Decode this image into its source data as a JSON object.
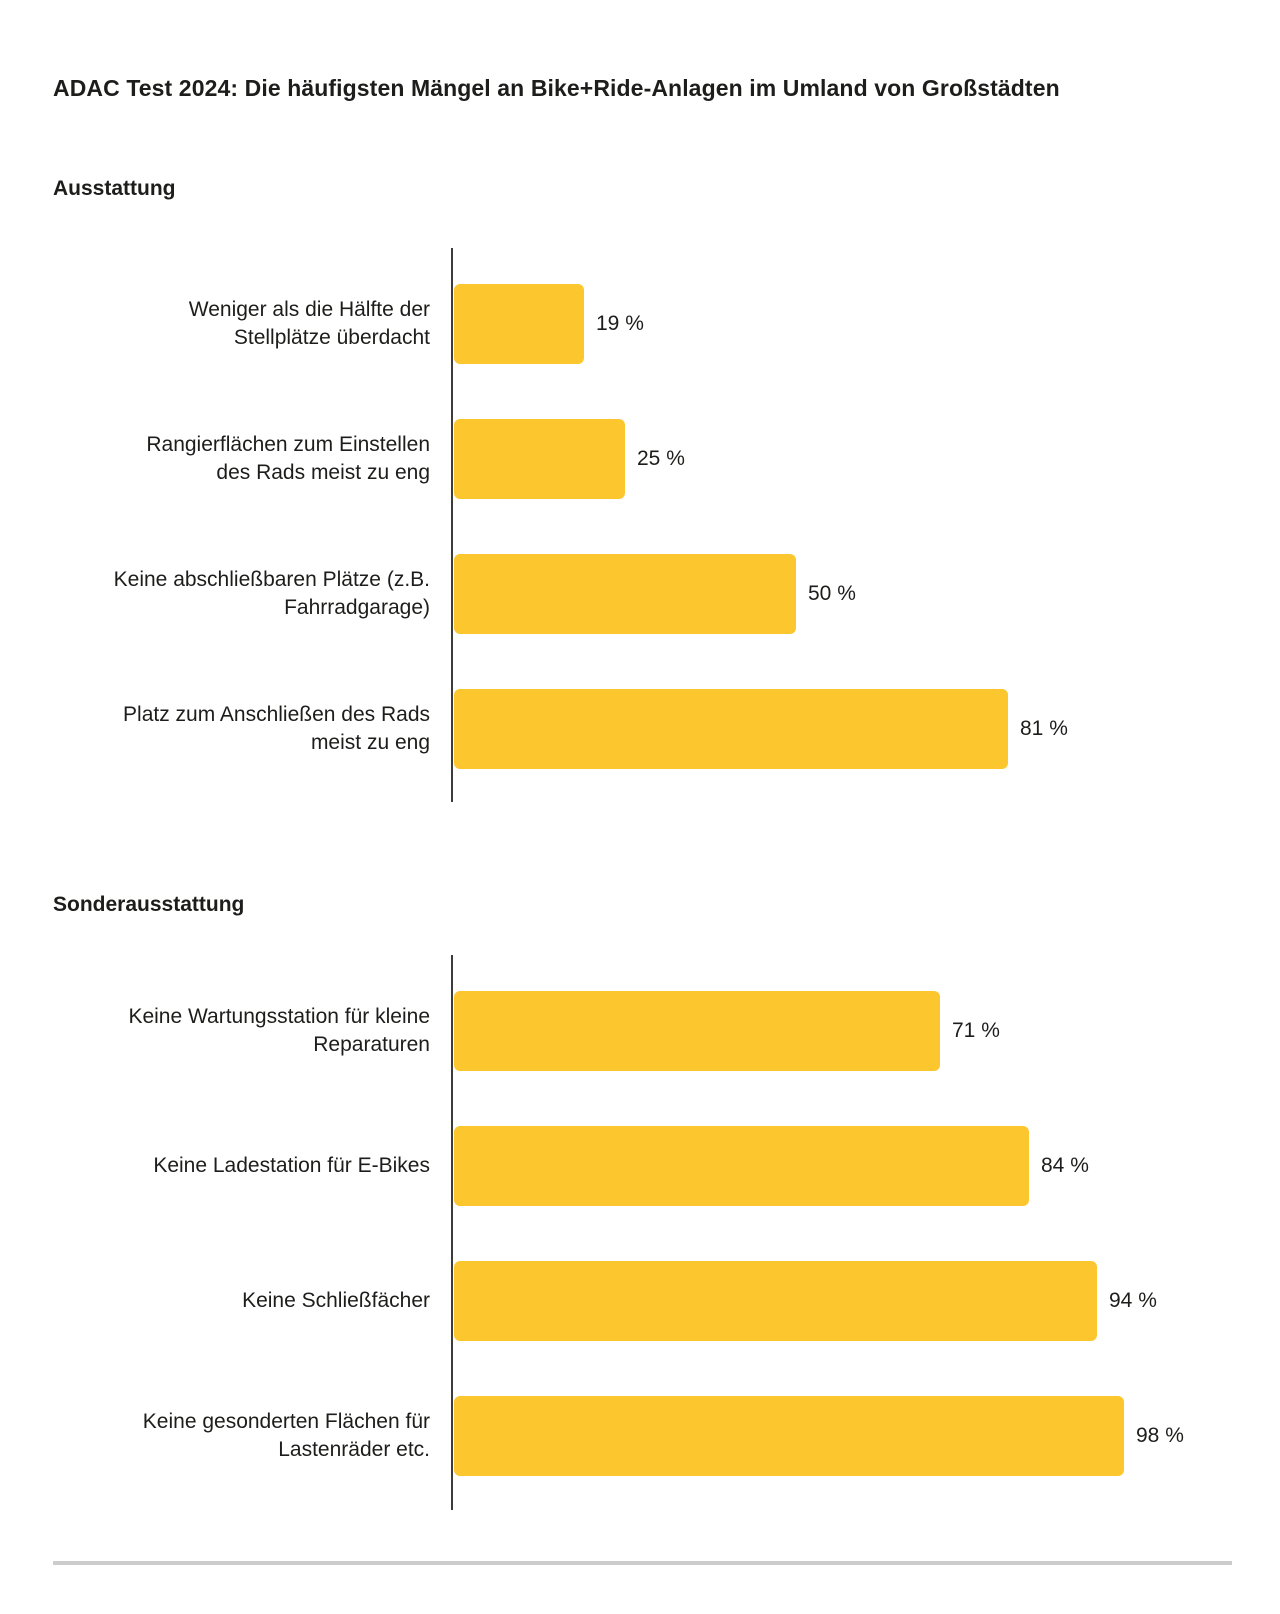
{
  "page": {
    "title": "ADAC Test 2024: Die häufigsten Mängel an Bike+Ride-Anlagen im Umland von Großstädten"
  },
  "colors": {
    "bar_fill": "#FCC72E",
    "axis": "#3C3C3B",
    "divider": "#CCCCCC",
    "text": "#1D1D1B"
  },
  "chart_data": [
    {
      "type": "bar",
      "orientation": "horizontal",
      "title": "Ausstattung",
      "unit": "%",
      "xlim": [
        0,
        100
      ],
      "grid": false,
      "legend": "none",
      "categories": [
        "Weniger als die Hälfte der\nStellplätze überdacht",
        "Rangierflächen zum Einstellen\ndes Rads meist zu eng",
        "Keine abschließbaren Plätze (z.B.\nFahrradgarage)",
        "Platz zum Anschließen des Rads\nmeist zu eng"
      ],
      "values": [
        19,
        25,
        50,
        81
      ],
      "value_labels": [
        "19 %",
        "25 %",
        "50 %",
        "81 %"
      ]
    },
    {
      "type": "bar",
      "orientation": "horizontal",
      "title": "Sonderausstattung",
      "unit": "%",
      "xlim": [
        0,
        100
      ],
      "grid": false,
      "legend": "none",
      "categories": [
        "Keine Wartungsstation für kleine\nReparaturen",
        "Keine Ladestation für E-Bikes",
        "Keine Schließfächer",
        "Keine gesonderten Flächen für\nLastenräder etc."
      ],
      "values": [
        71,
        84,
        94,
        98
      ],
      "value_labels": [
        "71 %",
        "84 %",
        "94 %",
        "98 %"
      ]
    }
  ]
}
